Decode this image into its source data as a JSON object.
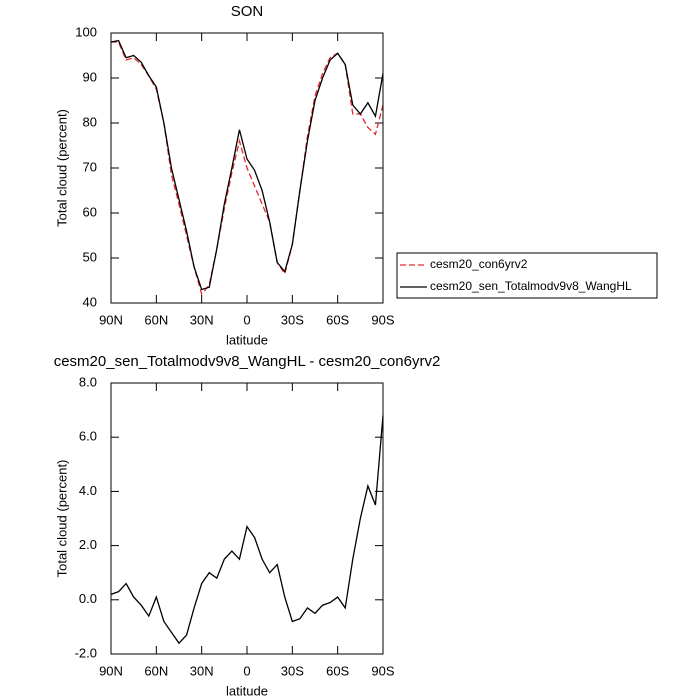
{
  "chart_data": [
    {
      "type": "line",
      "title": "SON",
      "xlabel": "latitude",
      "ylabel": "Total cloud (percent)",
      "x": [
        90,
        85,
        80,
        75,
        70,
        65,
        60,
        55,
        50,
        45,
        40,
        35,
        30,
        25,
        20,
        15,
        10,
        5,
        0,
        -5,
        -10,
        -15,
        -20,
        -25,
        -30,
        -35,
        -40,
        -45,
        -50,
        -55,
        -60,
        -65,
        -70,
        -75,
        -80,
        -85,
        -90
      ],
      "xlim": [
        90,
        -90
      ],
      "xticks": [
        {
          "value": 90,
          "label": "90N"
        },
        {
          "value": 60,
          "label": "60N"
        },
        {
          "value": 30,
          "label": "30N"
        },
        0,
        {
          "value": -30,
          "label": "30S"
        },
        {
          "value": -60,
          "label": "60S"
        },
        {
          "value": -90,
          "label": "90S"
        }
      ],
      "ylim": [
        40,
        100
      ],
      "yticks": [
        40,
        50,
        60,
        70,
        80,
        90,
        100
      ],
      "legend": "right",
      "series": [
        {
          "name": "cesm20_con6yrv2",
          "color": "#e8262a",
          "dashed": true,
          "values": [
            98,
            98,
            94,
            94.5,
            93,
            90.5,
            87.5,
            80,
            68.5,
            62,
            55,
            48,
            42,
            44,
            52,
            61,
            69,
            76,
            70,
            66,
            62,
            58,
            49,
            46.5,
            53,
            65,
            77,
            86,
            91,
            94.5,
            95.5,
            93,
            82,
            82,
            79,
            77.5,
            84
          ]
        },
        {
          "name": "cesm20_sen_Totalmodv9v8_WangHL",
          "color": "#000000",
          "dashed": false,
          "values": [
            98,
            98.3,
            94.5,
            95,
            93.5,
            90.5,
            88,
            80,
            70,
            63,
            56,
            48,
            43,
            43.5,
            52,
            62,
            70,
            78.5,
            72,
            69.5,
            65,
            58,
            49,
            47,
            53,
            65,
            76,
            85,
            90,
            94,
            95.5,
            93,
            84,
            82,
            84.5,
            81.5,
            91
          ]
        }
      ]
    },
    {
      "type": "line",
      "title": "cesm20_sen_Totalmodv9v8_WangHL - cesm20_con6yrv2",
      "xlabel": "latitude",
      "ylabel": "Total cloud (percent)",
      "x": [
        90,
        85,
        80,
        75,
        70,
        65,
        60,
        55,
        50,
        45,
        40,
        35,
        30,
        25,
        20,
        15,
        10,
        5,
        0,
        -5,
        -10,
        -15,
        -20,
        -25,
        -30,
        -35,
        -40,
        -45,
        -50,
        -55,
        -60,
        -65,
        -70,
        -75,
        -80,
        -85,
        -90
      ],
      "xlim": [
        90,
        -90
      ],
      "xticks": [
        {
          "value": 90,
          "label": "90N"
        },
        {
          "value": 60,
          "label": "60N"
        },
        {
          "value": 30,
          "label": "30N"
        },
        0,
        {
          "value": -30,
          "label": "30S"
        },
        {
          "value": -60,
          "label": "60S"
        },
        {
          "value": -90,
          "label": "90S"
        }
      ],
      "ylim": [
        -2,
        8
      ],
      "yticks": [
        {
          "value": -2,
          "label": "-2.0"
        },
        {
          "value": 0,
          "label": "0.0"
        },
        {
          "value": 2,
          "label": "2.0"
        },
        {
          "value": 4,
          "label": "4.0"
        },
        {
          "value": 6,
          "label": "6.0"
        },
        {
          "value": 8,
          "label": "8.0"
        }
      ],
      "series": [
        {
          "color": "#000000",
          "dashed": false,
          "values": [
            0.2,
            0.3,
            0.6,
            0.1,
            -0.2,
            -0.6,
            0.1,
            -0.8,
            -1.2,
            -1.6,
            -1.3,
            -0.3,
            0.6,
            1.0,
            0.8,
            1.5,
            1.8,
            1.5,
            2.7,
            2.3,
            1.5,
            1.0,
            1.3,
            0.1,
            -0.8,
            -0.7,
            -0.3,
            -0.5,
            -0.2,
            -0.1,
            0.1,
            -0.3,
            1.5,
            3.0,
            4.2,
            3.5,
            6.8
          ]
        }
      ]
    }
  ]
}
